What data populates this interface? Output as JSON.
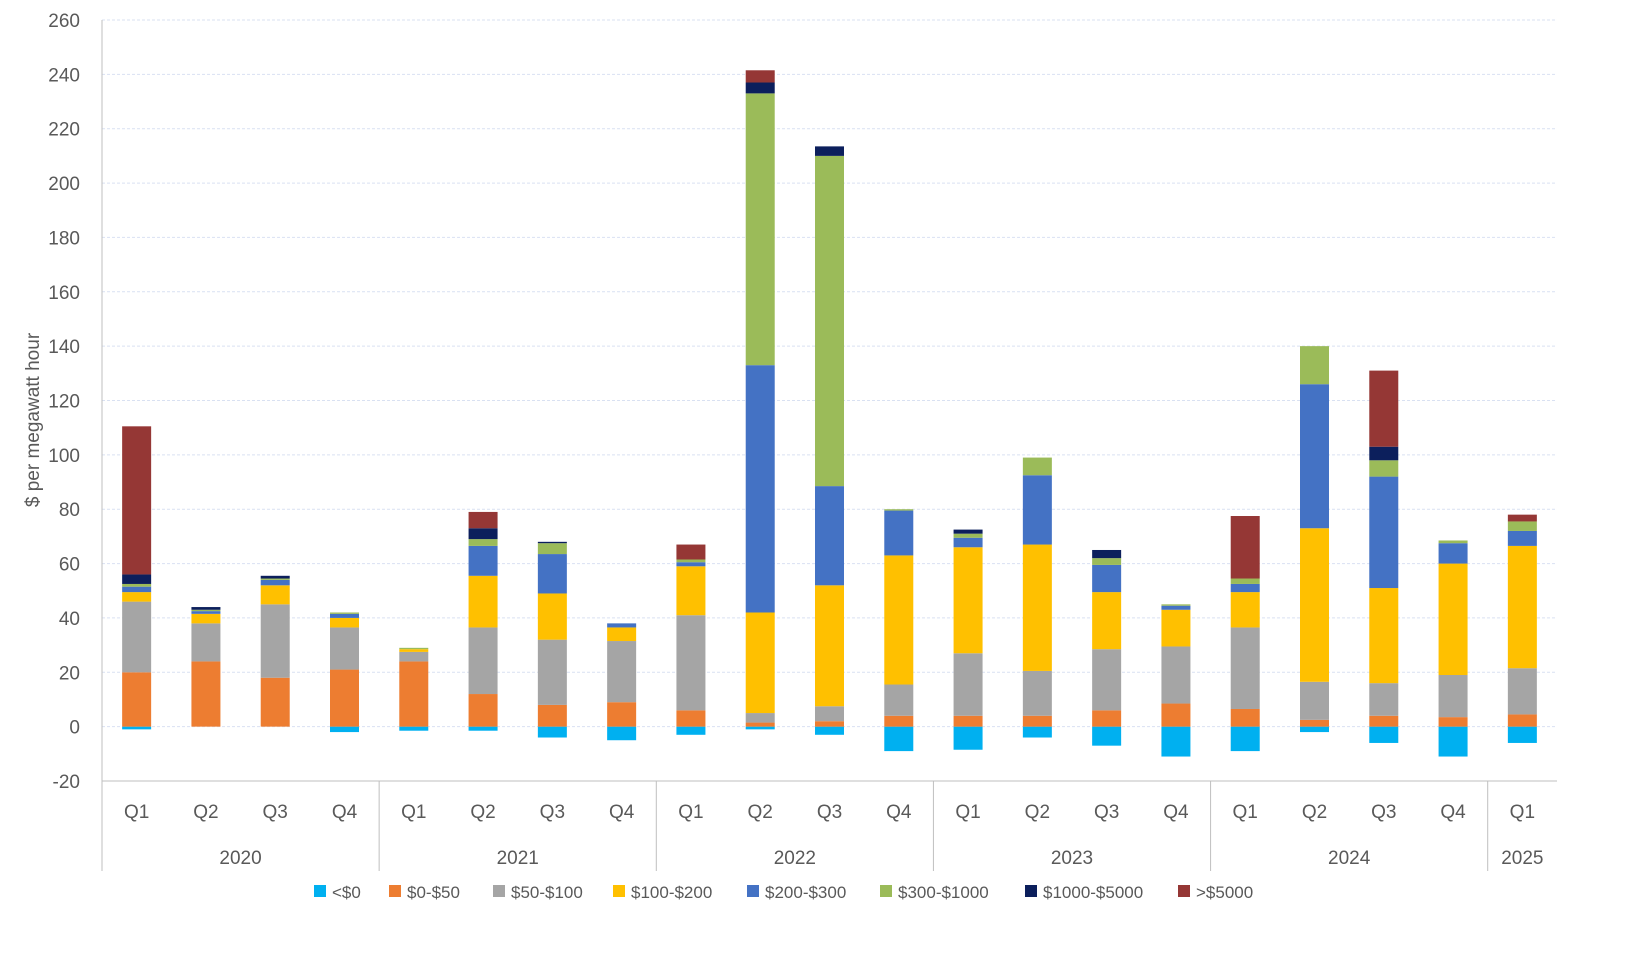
{
  "chart_data": {
    "type": "bar",
    "stacked": true,
    "title": "",
    "xlabel": "",
    "ylabel": "$ per megawatt hour",
    "ylim": [
      -20,
      260
    ],
    "ytick_step": 20,
    "grid": true,
    "legend_position": "bottom",
    "quarters": [
      "Q1",
      "Q2",
      "Q3",
      "Q4",
      "Q1",
      "Q2",
      "Q3",
      "Q4",
      "Q1",
      "Q2",
      "Q3",
      "Q4",
      "Q1",
      "Q2",
      "Q3",
      "Q4",
      "Q1",
      "Q2",
      "Q3",
      "Q4",
      "Q1"
    ],
    "years": [
      {
        "label": "2020",
        "count": 4
      },
      {
        "label": "2021",
        "count": 4
      },
      {
        "label": "2022",
        "count": 4
      },
      {
        "label": "2023",
        "count": 4
      },
      {
        "label": "2024",
        "count": 4
      },
      {
        "label": "2025",
        "count": 1
      }
    ],
    "series": [
      {
        "name": "<$0",
        "color": "#00B0F0",
        "values": [
          -1,
          0,
          0,
          -2,
          -1.5,
          -1.5,
          -4,
          -5,
          -3,
          -1,
          -3,
          -9,
          -8.5,
          -4,
          -7,
          -11,
          -9,
          -2,
          -6,
          -11,
          -6
        ]
      },
      {
        "name": "$0-$50",
        "color": "#ED7D31",
        "values": [
          20,
          24,
          18,
          21,
          24,
          12,
          8,
          9,
          6,
          1.5,
          2,
          4,
          4,
          4,
          6,
          8.5,
          6.5,
          2.5,
          4,
          3.5,
          4.5
        ]
      },
      {
        "name": "$50-$100",
        "color": "#A5A5A5",
        "values": [
          26,
          14,
          27,
          15.5,
          3.5,
          24.5,
          24,
          22.5,
          35,
          3.5,
          5.5,
          11.5,
          23,
          16.5,
          22.5,
          21,
          30,
          14,
          12,
          15.5,
          17
        ]
      },
      {
        "name": "$100-$200",
        "color": "#FFC000",
        "values": [
          3.5,
          3.5,
          7,
          3.5,
          1,
          19,
          17,
          5,
          18,
          37,
          44.5,
          47.5,
          39,
          46.5,
          21,
          13.5,
          13,
          56.5,
          35,
          41,
          45
        ]
      },
      {
        "name": "$200-$300",
        "color": "#4472C4",
        "values": [
          2,
          1,
          2,
          1.5,
          0,
          11,
          14.5,
          1.5,
          1.5,
          91,
          36.5,
          16.5,
          3.5,
          25.5,
          10,
          1.5,
          3,
          53,
          41,
          7.5,
          5.5
        ]
      },
      {
        "name": "$300-$1000",
        "color": "#9BBB59",
        "values": [
          1,
          0.5,
          0.5,
          0.5,
          0.5,
          2.5,
          4,
          0,
          1,
          100,
          121.5,
          0.5,
          1.5,
          6.5,
          2.5,
          0.5,
          2,
          14,
          6,
          1,
          3.5
        ]
      },
      {
        "name": "$1000-$5000",
        "color": "#0C1F5C",
        "values": [
          3.5,
          1,
          1,
          0,
          0,
          4,
          0.5,
          0,
          0,
          4,
          3.5,
          0,
          1.5,
          0,
          3,
          0,
          0,
          0,
          5,
          0,
          0
        ]
      },
      {
        "name": ">$5000",
        "color": "#953735",
        "values": [
          54.5,
          0,
          0,
          0,
          0,
          6,
          0,
          0,
          5.5,
          4.5,
          0,
          0,
          0,
          0,
          0,
          0,
          23,
          0,
          28,
          0,
          2.5
        ]
      }
    ]
  }
}
